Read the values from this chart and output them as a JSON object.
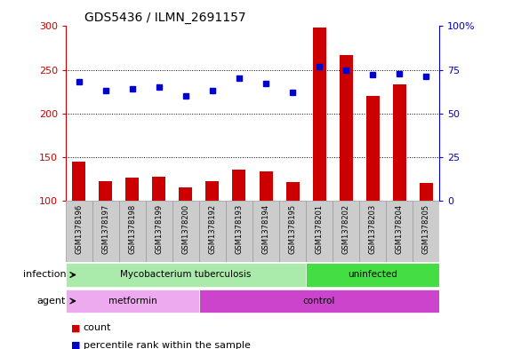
{
  "title": "GDS5436 / ILMN_2691157",
  "samples": [
    "GSM1378196",
    "GSM1378197",
    "GSM1378198",
    "GSM1378199",
    "GSM1378200",
    "GSM1378192",
    "GSM1378193",
    "GSM1378194",
    "GSM1378195",
    "GSM1378201",
    "GSM1378202",
    "GSM1378203",
    "GSM1378204",
    "GSM1378205"
  ],
  "counts": [
    145,
    122,
    126,
    127,
    115,
    122,
    136,
    134,
    121,
    298,
    267,
    220,
    233,
    120
  ],
  "percentile_ranks": [
    68,
    63,
    64,
    65,
    60,
    63,
    70,
    67,
    62,
    77,
    75,
    72,
    73,
    71
  ],
  "bar_color": "#cc0000",
  "dot_color": "#0000cc",
  "ylim_left": [
    100,
    300
  ],
  "ylim_right": [
    0,
    100
  ],
  "yticks_left": [
    100,
    150,
    200,
    250,
    300
  ],
  "yticks_right": [
    0,
    25,
    50,
    75,
    100
  ],
  "infection_groups": [
    {
      "label": "Mycobacterium tuberculosis",
      "start": 0,
      "end": 8,
      "color": "#aaeaaa"
    },
    {
      "label": "uninfected",
      "start": 9,
      "end": 13,
      "color": "#44dd44"
    }
  ],
  "agent_groups": [
    {
      "label": "metformin",
      "start": 0,
      "end": 4,
      "color": "#eeaaee"
    },
    {
      "label": "control",
      "start": 5,
      "end": 13,
      "color": "#cc44cc"
    }
  ],
  "infection_label": "infection",
  "agent_label": "agent",
  "legend_count_label": "count",
  "legend_pct_label": "percentile rank within the sample",
  "title_fontsize": 10,
  "left_tick_color": "#cc0000",
  "right_tick_color": "#0000cc",
  "sample_box_color": "#cccccc",
  "sample_box_edge": "#999999"
}
